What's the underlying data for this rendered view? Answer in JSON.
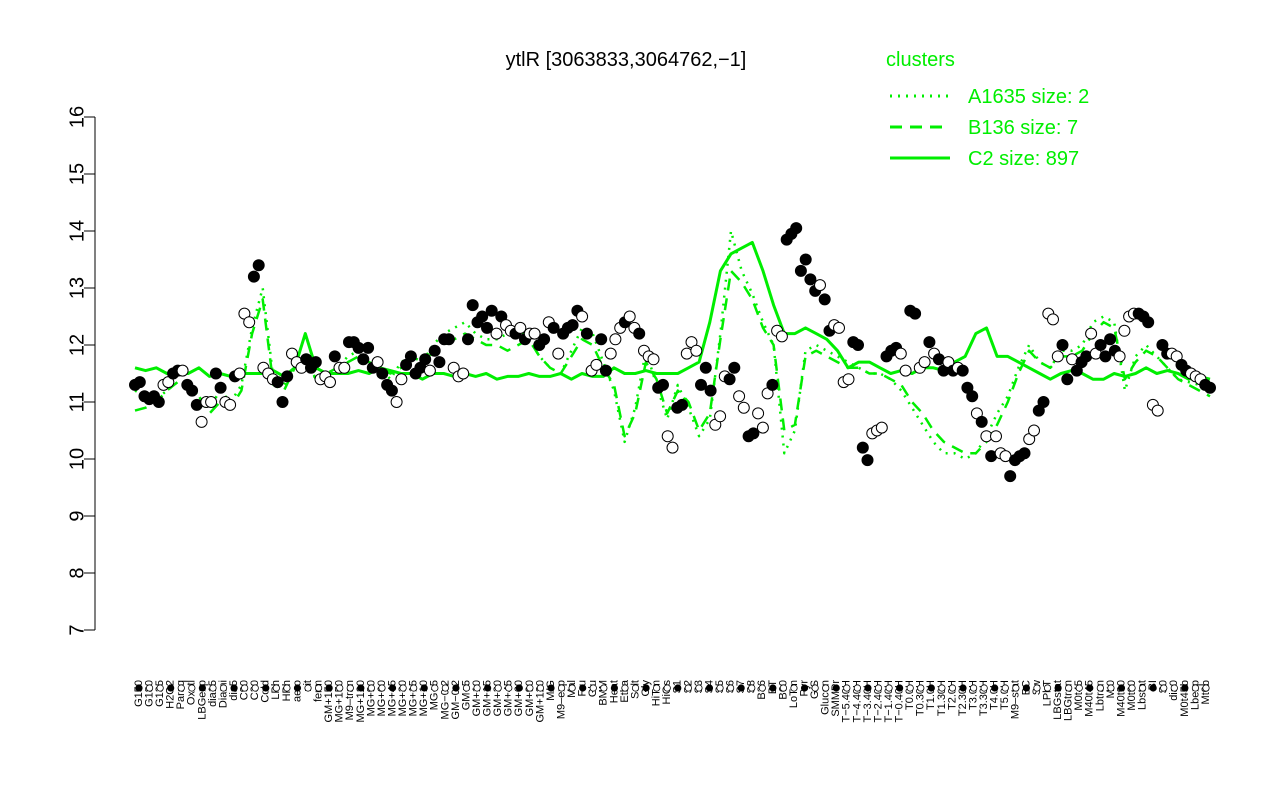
{
  "colors": {
    "main": "#00ee00",
    "axis": "#000000",
    "dark_point": "#000000",
    "light_point": "#ffffff"
  },
  "chart_data": {
    "type": "line",
    "title": "ytlR [3063833,3064762,−1]",
    "xlabel": "",
    "ylabel": "",
    "ylim": [
      7,
      16
    ],
    "yticks": [
      7,
      8,
      9,
      10,
      11,
      12,
      13,
      14,
      15,
      16
    ],
    "grid": false,
    "legend": {
      "title": "clusters",
      "placement": "top-right",
      "entries": [
        {
          "label": "A1635 size: 2",
          "style": "dotted"
        },
        {
          "label": "B136 size: 7",
          "style": "dashed"
        },
        {
          "label": "C2 size: 897",
          "style": "solid"
        }
      ]
    },
    "x_tick_labels": [
      "G150",
      "G180",
      "G135",
      "H2O2",
      "Paraq",
      "Oxctl",
      "LBGexp",
      "dia15",
      "Diami",
      "dia5",
      "C90",
      "C30",
      "Cold",
      "LPh",
      "HPh",
      "aero",
      "nit",
      "ferm",
      "GM+150",
      "MG+150",
      "M9–tran",
      "MG+120",
      "MG+90",
      "MG+60",
      "MG+45",
      "MG+30",
      "MG+15",
      "MG+10",
      "MG+5",
      "MG−0.2",
      "GM−0.2",
      "GM+5",
      "GM+10",
      "GM+15",
      "GM+30",
      "GM+45",
      "GM+60",
      "GM+90",
      "GM+120",
      "M/G",
      "M9–exp",
      "Mal",
      "Fru",
      "Glu",
      "BMM",
      "Heat",
      "Etha",
      "Salt",
      "Gly",
      "HiTm",
      "HiOs",
      "S1",
      "S2",
      "S3",
      "S4",
      "S5",
      "S6",
      "S7",
      "S8",
      "B36",
      "BT",
      "B60",
      "LoTm",
      "Pyr",
      "G/S",
      "Glucon",
      "SMMPr",
      "T−5.40H",
      "T−4.40H",
      "T−3.40H",
      "T−2.40H",
      "T−1.40H",
      "T−0.40H",
      "T0.0H",
      "T0.30H",
      "T1.0H",
      "T1.30H",
      "T2.0H",
      "T2.30H",
      "T3.0H",
      "T3.30H",
      "T4.0H",
      "T5.0H",
      "M9–stat",
      "BC",
      "Sw",
      "LPhT",
      "LBGstat",
      "LBGtran",
      "M0t45",
      "M40t45",
      "Lbtran",
      "Mt0",
      "M40t90",
      "M0t90",
      "Lbstat",
      "BI",
      "S0",
      "dia0",
      "M0t45b",
      "Lbexp",
      "Mt0b"
    ],
    "series": [
      {
        "style": "solid",
        "values": [
          11.6,
          11.55,
          11.6,
          11.5,
          11.55,
          11.5,
          11.6,
          11.45,
          11.5,
          11.45,
          11.5,
          11.5,
          11.5,
          11.55,
          11.45,
          11.6,
          12.2,
          11.6,
          11.5,
          11.5,
          11.5,
          11.55,
          11.5,
          11.6,
          11.55,
          11.5,
          11.5,
          11.4,
          11.5,
          11.5,
          11.45,
          11.5,
          11.45,
          11.5,
          11.4,
          11.45,
          11.45,
          11.5,
          11.45,
          11.45,
          11.5,
          11.4,
          11.5,
          11.45,
          11.45,
          11.6,
          11.5,
          11.5,
          11.55,
          11.5,
          11.5,
          11.5,
          11.6,
          11.7,
          12.4,
          13.3,
          13.6,
          13.7,
          13.8,
          13.3,
          12.7,
          12.2,
          12.2,
          12.3,
          12.2,
          12.1,
          11.9,
          11.6,
          11.7,
          11.7,
          11.6,
          11.5,
          11.55,
          11.5,
          11.6,
          11.6,
          11.55,
          11.7,
          11.8,
          12.2,
          12.3,
          11.8,
          11.8,
          11.7,
          11.6,
          11.5,
          11.4,
          11.5,
          11.55,
          11.5,
          11.4,
          11.4,
          11.5,
          11.45,
          11.5,
          11.6,
          11.5,
          11.55,
          11.5,
          11.4,
          11.45,
          11.4
        ]
      },
      {
        "style": "dashed",
        "values": [
          10.85,
          10.9,
          11.0,
          11.2,
          11.35,
          11.3,
          11.1,
          10.8,
          11.0,
          10.9,
          11.2,
          12.2,
          12.8,
          11.3,
          11.2,
          11.6,
          11.8,
          11.4,
          11.5,
          11.6,
          11.7,
          11.8,
          11.7,
          11.6,
          11.5,
          11.6,
          11.7,
          11.6,
          11.9,
          12.0,
          12.1,
          12.2,
          12.1,
          12.0,
          12.0,
          11.9,
          12.0,
          12.1,
          11.8,
          11.6,
          11.5,
          11.8,
          12.1,
          12.0,
          11.6,
          11.3,
          10.4,
          10.8,
          11.7,
          11.4,
          10.8,
          11.2,
          11.0,
          10.5,
          10.8,
          12.1,
          13.3,
          13.1,
          12.8,
          12.3,
          12.0,
          10.5,
          10.6,
          11.8,
          11.9,
          11.8,
          11.7,
          11.6,
          11.6,
          11.5,
          11.5,
          11.4,
          11.3,
          11.0,
          10.8,
          10.5,
          10.3,
          10.2,
          10.1,
          10.1,
          10.3,
          10.6,
          11.0,
          11.5,
          11.9,
          11.7,
          11.6,
          11.8,
          11.8,
          11.9,
          12.2,
          12.4,
          12.3,
          11.4,
          11.7,
          11.9,
          11.8,
          11.6,
          11.4,
          11.3,
          11.2,
          11.1
        ]
      },
      {
        "style": "dotted",
        "values": [
          11.2,
          11.1,
          11.05,
          11.2,
          11.35,
          11.3,
          11.1,
          10.9,
          11.2,
          11.0,
          11.3,
          12.3,
          13.0,
          11.4,
          11.3,
          11.6,
          11.7,
          11.4,
          11.5,
          11.6,
          11.8,
          11.9,
          11.7,
          11.6,
          11.4,
          11.7,
          11.8,
          11.7,
          12.0,
          12.2,
          12.3,
          12.4,
          12.2,
          12.1,
          12.1,
          12.2,
          12.3,
          12.1,
          11.8,
          11.6,
          11.5,
          11.9,
          12.3,
          12.2,
          11.7,
          11.2,
          10.3,
          10.9,
          11.9,
          11.3,
          10.7,
          11.3,
          10.9,
          10.4,
          10.7,
          12.2,
          14.0,
          13.3,
          12.9,
          12.4,
          12.0,
          10.1,
          10.5,
          11.9,
          12.0,
          11.9,
          11.8,
          11.7,
          11.6,
          11.5,
          11.5,
          11.4,
          11.2,
          10.9,
          10.6,
          10.3,
          10.1,
          10.1,
          10.0,
          10.1,
          10.4,
          10.8,
          11.1,
          11.6,
          12.0,
          11.7,
          11.6,
          11.9,
          11.9,
          12.0,
          12.4,
          12.5,
          12.4,
          11.2,
          11.8,
          12.0,
          11.8,
          11.6,
          11.4,
          11.35,
          11.3,
          11.25
        ]
      }
    ],
    "points": [
      [
        0,
        11.3,
        1
      ],
      [
        1,
        11.35,
        1
      ],
      [
        2,
        11.1,
        1
      ],
      [
        3,
        11.05,
        1
      ],
      [
        4,
        11.1,
        1
      ],
      [
        5,
        11.0,
        1
      ],
      [
        6,
        11.3,
        0
      ],
      [
        7,
        11.35,
        0
      ],
      [
        8,
        11.5,
        1
      ],
      [
        9,
        11.55,
        1
      ],
      [
        10,
        11.55,
        0
      ],
      [
        11,
        11.3,
        1
      ],
      [
        12,
        11.2,
        1
      ],
      [
        13,
        10.95,
        1
      ],
      [
        14,
        10.65,
        0
      ],
      [
        15,
        11.0,
        0
      ],
      [
        16,
        11.0,
        0
      ],
      [
        17,
        11.5,
        1
      ],
      [
        18,
        11.25,
        1
      ],
      [
        19,
        11.0,
        0
      ],
      [
        20,
        10.95,
        0
      ],
      [
        21,
        11.45,
        1
      ],
      [
        22,
        11.5,
        0
      ],
      [
        23,
        12.55,
        0
      ],
      [
        24,
        12.4,
        0
      ],
      [
        25,
        13.2,
        1
      ],
      [
        26,
        13.4,
        1
      ],
      [
        27,
        11.6,
        0
      ],
      [
        28,
        11.5,
        0
      ],
      [
        29,
        11.4,
        0
      ],
      [
        30,
        11.35,
        1
      ],
      [
        31,
        11.0,
        1
      ],
      [
        32,
        11.45,
        1
      ],
      [
        33,
        11.85,
        0
      ],
      [
        34,
        11.7,
        0
      ],
      [
        35,
        11.6,
        0
      ],
      [
        36,
        11.75,
        1
      ],
      [
        37,
        11.6,
        1
      ],
      [
        38,
        11.7,
        1
      ],
      [
        39,
        11.4,
        0
      ],
      [
        40,
        11.45,
        0
      ],
      [
        41,
        11.35,
        0
      ],
      [
        42,
        11.8,
        1
      ],
      [
        43,
        11.6,
        0
      ],
      [
        44,
        11.6,
        0
      ],
      [
        45,
        12.05,
        1
      ],
      [
        46,
        12.05,
        1
      ],
      [
        47,
        11.95,
        1
      ],
      [
        48,
        11.75,
        1
      ],
      [
        49,
        11.95,
        1
      ],
      [
        50,
        11.6,
        1
      ],
      [
        51,
        11.7,
        0
      ],
      [
        52,
        11.5,
        1
      ],
      [
        53,
        11.3,
        1
      ],
      [
        54,
        11.2,
        1
      ],
      [
        55,
        11.0,
        0
      ],
      [
        56,
        11.4,
        0
      ],
      [
        57,
        11.65,
        1
      ],
      [
        58,
        11.8,
        1
      ],
      [
        59,
        11.5,
        1
      ],
      [
        60,
        11.6,
        1
      ],
      [
        61,
        11.75,
        1
      ],
      [
        62,
        11.55,
        0
      ],
      [
        63,
        11.9,
        1
      ],
      [
        64,
        11.7,
        1
      ],
      [
        65,
        12.1,
        1
      ],
      [
        66,
        12.1,
        1
      ],
      [
        67,
        11.6,
        0
      ],
      [
        68,
        11.45,
        0
      ],
      [
        69,
        11.5,
        0
      ],
      [
        70,
        12.1,
        1
      ],
      [
        71,
        12.7,
        1
      ],
      [
        72,
        12.4,
        1
      ],
      [
        73,
        12.5,
        1
      ],
      [
        74,
        12.3,
        1
      ],
      [
        75,
        12.6,
        1
      ],
      [
        76,
        12.2,
        0
      ],
      [
        77,
        12.5,
        1
      ],
      [
        78,
        12.35,
        0
      ],
      [
        79,
        12.25,
        0
      ],
      [
        80,
        12.2,
        1
      ],
      [
        81,
        12.3,
        0
      ],
      [
        82,
        12.1,
        1
      ],
      [
        83,
        12.2,
        0
      ],
      [
        84,
        12.2,
        0
      ],
      [
        85,
        12.0,
        1
      ],
      [
        86,
        12.1,
        1
      ],
      [
        87,
        12.4,
        0
      ],
      [
        88,
        12.3,
        1
      ],
      [
        89,
        11.85,
        0
      ],
      [
        90,
        12.2,
        1
      ],
      [
        91,
        12.3,
        1
      ],
      [
        92,
        12.35,
        1
      ],
      [
        93,
        12.6,
        1
      ],
      [
        94,
        12.5,
        0
      ],
      [
        95,
        12.2,
        1
      ],
      [
        96,
        11.55,
        0
      ],
      [
        97,
        11.65,
        0
      ],
      [
        98,
        12.1,
        1
      ],
      [
        99,
        11.55,
        1
      ],
      [
        100,
        11.85,
        0
      ],
      [
        101,
        12.1,
        0
      ],
      [
        102,
        12.3,
        0
      ],
      [
        103,
        12.4,
        1
      ],
      [
        104,
        12.5,
        0
      ],
      [
        105,
        12.3,
        0
      ],
      [
        106,
        12.2,
        1
      ],
      [
        107,
        11.9,
        0
      ],
      [
        108,
        11.8,
        0
      ],
      [
        109,
        11.75,
        0
      ],
      [
        110,
        11.25,
        1
      ],
      [
        111,
        11.3,
        1
      ],
      [
        112,
        10.4,
        0
      ],
      [
        113,
        10.2,
        0
      ],
      [
        114,
        10.9,
        1
      ],
      [
        115,
        10.95,
        1
      ],
      [
        116,
        11.85,
        0
      ],
      [
        117,
        12.05,
        0
      ],
      [
        118,
        11.9,
        0
      ],
      [
        119,
        11.3,
        1
      ],
      [
        120,
        11.6,
        1
      ],
      [
        121,
        11.2,
        1
      ],
      [
        122,
        10.6,
        0
      ],
      [
        123,
        10.75,
        0
      ],
      [
        124,
        11.45,
        0
      ],
      [
        125,
        11.4,
        1
      ],
      [
        126,
        11.6,
        1
      ],
      [
        127,
        11.1,
        0
      ],
      [
        128,
        10.9,
        0
      ],
      [
        129,
        10.4,
        1
      ],
      [
        130,
        10.45,
        1
      ],
      [
        131,
        10.8,
        0
      ],
      [
        132,
        10.55,
        0
      ],
      [
        133,
        11.15,
        0
      ],
      [
        134,
        11.3,
        1
      ],
      [
        135,
        12.25,
        0
      ],
      [
        136,
        12.15,
        0
      ],
      [
        137,
        13.85,
        1
      ],
      [
        138,
        13.95,
        1
      ],
      [
        139,
        14.05,
        1
      ],
      [
        140,
        13.3,
        1
      ],
      [
        141,
        13.5,
        1
      ],
      [
        142,
        13.15,
        1
      ],
      [
        143,
        12.95,
        1
      ],
      [
        144,
        13.05,
        0
      ],
      [
        145,
        12.8,
        1
      ],
      [
        146,
        12.25,
        1
      ],
      [
        147,
        12.35,
        0
      ],
      [
        148,
        12.3,
        0
      ],
      [
        149,
        11.35,
        0
      ],
      [
        150,
        11.4,
        0
      ],
      [
        151,
        12.05,
        1
      ],
      [
        152,
        12.0,
        1
      ],
      [
        153,
        10.2,
        1
      ],
      [
        154,
        9.98,
        1
      ],
      [
        155,
        10.45,
        0
      ],
      [
        156,
        10.5,
        0
      ],
      [
        157,
        10.55,
        0
      ],
      [
        158,
        11.8,
        1
      ],
      [
        159,
        11.9,
        1
      ],
      [
        160,
        11.95,
        1
      ],
      [
        161,
        11.85,
        0
      ],
      [
        162,
        11.55,
        0
      ],
      [
        163,
        12.6,
        1
      ],
      [
        164,
        12.55,
        1
      ],
      [
        165,
        11.6,
        0
      ],
      [
        166,
        11.7,
        0
      ],
      [
        167,
        12.05,
        1
      ],
      [
        168,
        11.85,
        0
      ],
      [
        169,
        11.75,
        1
      ],
      [
        170,
        11.55,
        1
      ],
      [
        171,
        11.7,
        0
      ],
      [
        172,
        11.55,
        1
      ],
      [
        173,
        11.6,
        0
      ],
      [
        174,
        11.55,
        1
      ],
      [
        175,
        11.25,
        1
      ],
      [
        176,
        11.1,
        1
      ],
      [
        177,
        10.8,
        0
      ],
      [
        178,
        10.65,
        1
      ],
      [
        179,
        10.4,
        0
      ],
      [
        180,
        10.05,
        1
      ],
      [
        181,
        10.4,
        0
      ],
      [
        182,
        10.1,
        0
      ],
      [
        183,
        10.05,
        0
      ],
      [
        184,
        9.7,
        1
      ],
      [
        185,
        9.98,
        1
      ],
      [
        186,
        10.05,
        1
      ],
      [
        187,
        10.1,
        1
      ],
      [
        188,
        10.35,
        0
      ],
      [
        189,
        10.5,
        0
      ],
      [
        190,
        10.85,
        1
      ],
      [
        191,
        11.0,
        1
      ],
      [
        192,
        12.55,
        0
      ],
      [
        193,
        12.45,
        0
      ],
      [
        194,
        11.8,
        0
      ],
      [
        195,
        12.0,
        1
      ],
      [
        196,
        11.4,
        1
      ],
      [
        197,
        11.75,
        0
      ],
      [
        198,
        11.55,
        1
      ],
      [
        199,
        11.7,
        1
      ],
      [
        200,
        11.8,
        1
      ],
      [
        201,
        12.2,
        0
      ],
      [
        202,
        11.85,
        0
      ],
      [
        203,
        12.0,
        1
      ],
      [
        204,
        11.8,
        1
      ],
      [
        205,
        12.1,
        1
      ],
      [
        206,
        11.9,
        1
      ],
      [
        207,
        11.8,
        0
      ],
      [
        208,
        12.25,
        0
      ],
      [
        209,
        12.5,
        0
      ],
      [
        210,
        12.55,
        0
      ],
      [
        211,
        12.55,
        1
      ],
      [
        212,
        12.5,
        1
      ],
      [
        213,
        12.4,
        1
      ],
      [
        214,
        10.95,
        0
      ],
      [
        215,
        10.85,
        0
      ],
      [
        216,
        12.0,
        1
      ],
      [
        217,
        11.85,
        1
      ],
      [
        218,
        11.85,
        0
      ],
      [
        219,
        11.8,
        0
      ],
      [
        220,
        11.65,
        1
      ],
      [
        221,
        11.55,
        1
      ],
      [
        222,
        11.5,
        0
      ],
      [
        223,
        11.45,
        0
      ],
      [
        224,
        11.4,
        0
      ],
      [
        225,
        11.3,
        1
      ],
      [
        226,
        11.25,
        1
      ]
    ],
    "point_slots": 227
  }
}
